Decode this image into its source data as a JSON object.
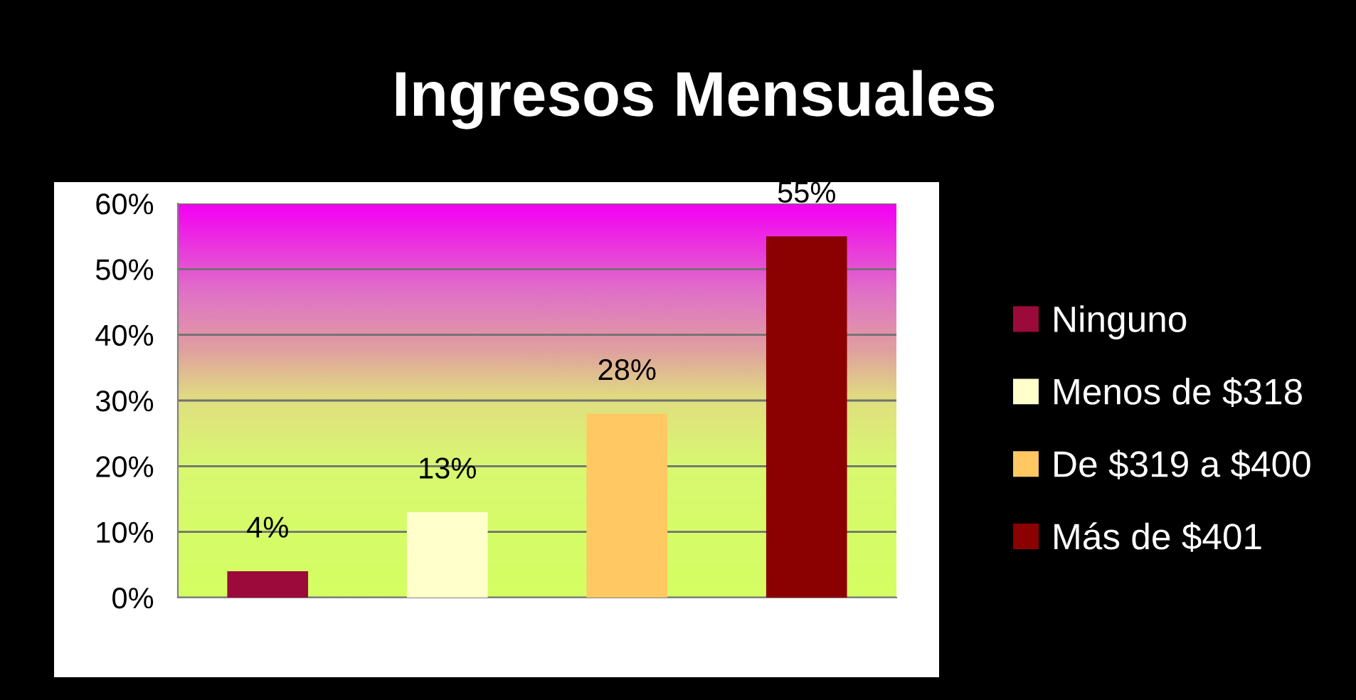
{
  "chart_data": {
    "type": "bar",
    "title": "Ingresos Mensuales",
    "categories": [
      null,
      null,
      null,
      null
    ],
    "series": [
      {
        "name": "Ninguno",
        "color": "#9b0a3a",
        "values": [
          4,
          null,
          null,
          null
        ],
        "value_labels": [
          "4%",
          null,
          null,
          null
        ]
      },
      {
        "name": "Menos de $318",
        "color": "#ffffcc",
        "values": [
          null,
          13,
          null,
          null
        ],
        "value_labels": [
          null,
          "13%",
          null,
          null
        ]
      },
      {
        "name": "De $319 a $400",
        "color": "#ffc862",
        "values": [
          null,
          null,
          28,
          null
        ],
        "value_labels": [
          null,
          null,
          "28%",
          null
        ]
      },
      {
        "name": "Más de $401",
        "color": "#8b0000",
        "values": [
          null,
          null,
          null,
          55
        ],
        "value_labels": [
          null,
          null,
          null,
          "55%"
        ]
      }
    ],
    "ylim": [
      0,
      60
    ],
    "yticks": [
      {
        "value": 0,
        "label": "0%"
      },
      {
        "value": 10,
        "label": "10%"
      },
      {
        "value": 20,
        "label": "20%"
      },
      {
        "value": 30,
        "label": "30%"
      },
      {
        "value": 40,
        "label": "40%"
      },
      {
        "value": 50,
        "label": "50%"
      },
      {
        "value": 60,
        "label": "60%"
      }
    ],
    "grid": "y",
    "legend": "right"
  }
}
